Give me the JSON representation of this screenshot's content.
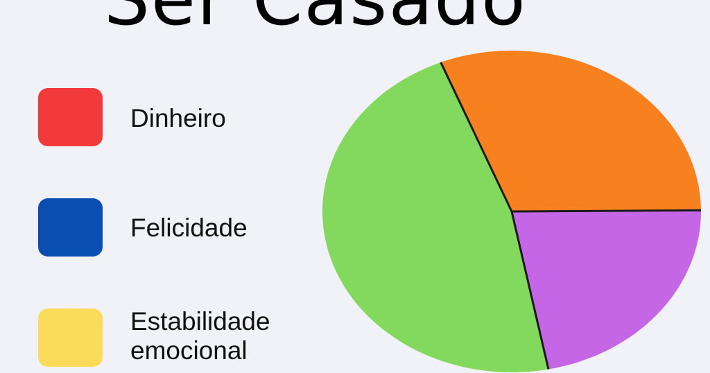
{
  "chart_data": {
    "type": "pie",
    "title": "Ser Casado",
    "legend": [
      {
        "label": "Dinheiro",
        "color": "#f23a3a"
      },
      {
        "label": "Felicidade",
        "color": "#0a4db3"
      },
      {
        "label": "Estabilidade emocional",
        "color": "#fbdc5a"
      }
    ],
    "legend_position": "left",
    "slices": [
      {
        "value": 31,
        "color": "#f7801f"
      },
      {
        "value": 22,
        "color": "#c466e6"
      },
      {
        "value": 47,
        "color": "#82d95e"
      }
    ]
  }
}
